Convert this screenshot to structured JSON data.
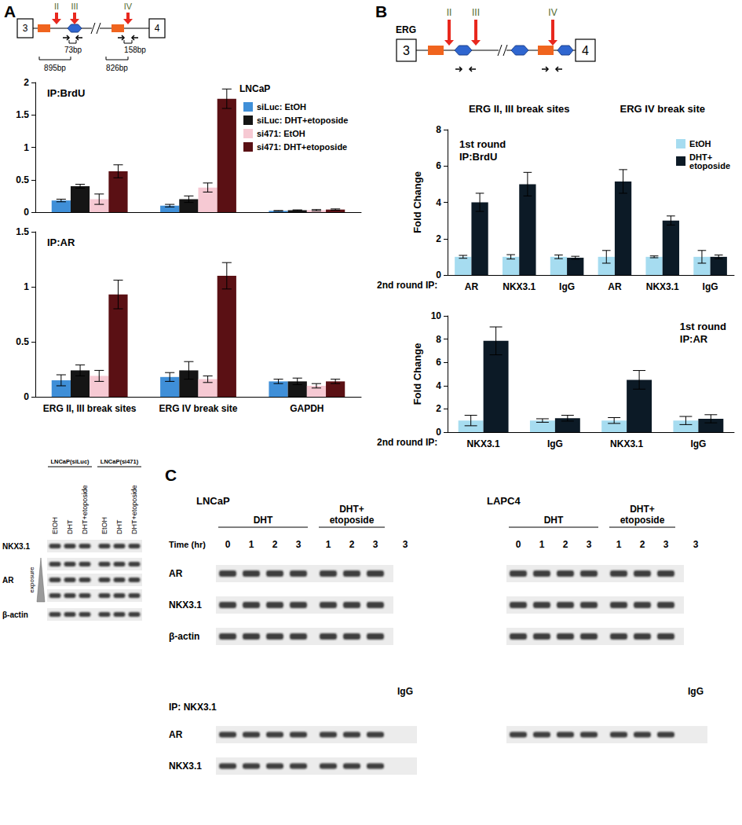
{
  "panel_labels": [
    "A",
    "B",
    "C"
  ],
  "diagram_A": {
    "exons": [
      "3",
      "4"
    ],
    "break_sites": [
      "II",
      "III",
      "IV"
    ],
    "sizes": [
      "73bp",
      "895bp",
      "158bp",
      "826bp"
    ]
  },
  "diagram_B": {
    "gene": "ERG",
    "exons": [
      "3",
      "4"
    ],
    "break_sites": [
      "II",
      "III",
      "IV"
    ]
  },
  "chart_data": [
    {
      "type": "bar",
      "title": "IP:BrdU",
      "annotations": [
        "LNCaP"
      ],
      "categories": [
        "ERG II, III break sites",
        "ERG IV break site",
        "GAPDH"
      ],
      "tick_labels": "y",
      "legend": "top-right",
      "grid": false,
      "ylim": [
        0,
        2
      ],
      "yticks": [
        0,
        0.5,
        1,
        1.5,
        2
      ],
      "series": [
        {
          "name": "siLuc: EtOH",
          "color": "#3f8fd8",
          "values": [
            0.18,
            0.1,
            0.02
          ],
          "errors": [
            0.02,
            0.02,
            0.005
          ]
        },
        {
          "name": "siLuc: DHT+etoposide",
          "color": "#151515",
          "values": [
            0.4,
            0.2,
            0.03
          ],
          "errors": [
            0.03,
            0.05,
            0.005
          ]
        },
        {
          "name": "si471: EtOH",
          "color": "#f6c9d3",
          "values": [
            0.2,
            0.38,
            0.03
          ],
          "errors": [
            0.08,
            0.07,
            0.01
          ]
        },
        {
          "name": "si471: DHT+etoposide",
          "color": "#5a1014",
          "values": [
            0.63,
            1.75,
            0.04
          ],
          "errors": [
            0.1,
            0.15,
            0.01
          ]
        }
      ]
    },
    {
      "type": "bar",
      "title": "IP:AR",
      "categories": [
        "ERG II, III break sites",
        "ERG IV break site",
        "GAPDH"
      ],
      "grid": false,
      "ylim": [
        0,
        1.5
      ],
      "yticks": [
        0,
        0.5,
        1,
        1.5
      ],
      "series": [
        {
          "color": "#3f8fd8",
          "values": [
            0.15,
            0.18,
            0.14
          ],
          "errors": [
            0.05,
            0.04,
            0.02
          ]
        },
        {
          "color": "#151515",
          "values": [
            0.24,
            0.24,
            0.14
          ],
          "errors": [
            0.05,
            0.08,
            0.03
          ]
        },
        {
          "color": "#f6c9d3",
          "values": [
            0.19,
            0.16,
            0.1
          ],
          "errors": [
            0.05,
            0.03,
            0.02
          ]
        },
        {
          "color": "#5a1014",
          "values": [
            0.93,
            1.1,
            0.14
          ],
          "errors": [
            0.13,
            0.12,
            0.02
          ]
        }
      ]
    },
    {
      "type": "bar",
      "title": "1st round\nIP:BrdU",
      "group_labels": [
        "ERG II, III break sites",
        "ERG IV break site"
      ],
      "x_label": "2nd round IP:",
      "y_label": "Fold Change",
      "categories": [
        "AR",
        "NKX3.1",
        "IgG",
        "AR",
        "NKX3.1",
        "IgG"
      ],
      "legend": "top-right",
      "grid": false,
      "ylim": [
        0,
        8
      ],
      "yticks": [
        0,
        2,
        4,
        6,
        8
      ],
      "series": [
        {
          "name": "EtOH",
          "color": "#a6dcf0",
          "values": [
            1,
            1,
            1,
            1,
            1,
            1
          ],
          "errors": [
            0.08,
            0.12,
            0.1,
            0.35,
            0.05,
            0.35
          ]
        },
        {
          "name": "DHT+\netoposide",
          "color": "#0c1a26",
          "values": [
            4.0,
            5.0,
            0.95,
            5.15,
            3.0,
            1.0
          ],
          "errors": [
            0.5,
            0.65,
            0.08,
            0.65,
            0.25,
            0.1
          ]
        }
      ]
    },
    {
      "type": "bar",
      "title": "1st round\nIP:AR",
      "x_label": "2nd round IP:",
      "y_label": "Fold Change",
      "categories": [
        "NKX3.1",
        "IgG",
        "NKX3.1",
        "IgG"
      ],
      "grid": false,
      "ylim": [
        0,
        10
      ],
      "yticks": [
        0,
        2,
        4,
        6,
        8,
        10
      ],
      "series": [
        {
          "color": "#a6dcf0",
          "values": [
            1,
            1,
            1,
            1
          ],
          "errors": [
            0.45,
            0.15,
            0.25,
            0.35
          ]
        },
        {
          "color": "#0c1a26",
          "values": [
            7.85,
            1.2,
            4.5,
            1.15
          ],
          "errors": [
            1.2,
            0.25,
            0.8,
            0.35
          ]
        }
      ]
    }
  ],
  "blot_A": {
    "groups": [
      "LNCaP(siLuc)",
      "LNCaP(si471)"
    ],
    "lanes": [
      "EtOH",
      "DHT",
      "DHT+etoposide"
    ],
    "rows": [
      "NKX3.1",
      "AR",
      "β-actin"
    ],
    "exposure_label": "exposure"
  },
  "blot_C": {
    "time_label": "Time (hr)",
    "treatments": [
      "DHT",
      "DHT+ etoposide"
    ],
    "times": [
      [
        0,
        1,
        2,
        3
      ],
      [
        1,
        2,
        3
      ]
    ],
    "control_lane": {
      "time": 3,
      "label": "IgG"
    },
    "rows": [
      "AR",
      "NKX3.1",
      "β-actin"
    ],
    "ip_label": "IP: NKX3.1",
    "cell_lines": [
      {
        "name": "LNCaP",
        "ip_rows": [
          "AR",
          "NKX3.1"
        ]
      },
      {
        "name": "LAPC4",
        "ip_rows": [
          "AR"
        ]
      }
    ]
  }
}
